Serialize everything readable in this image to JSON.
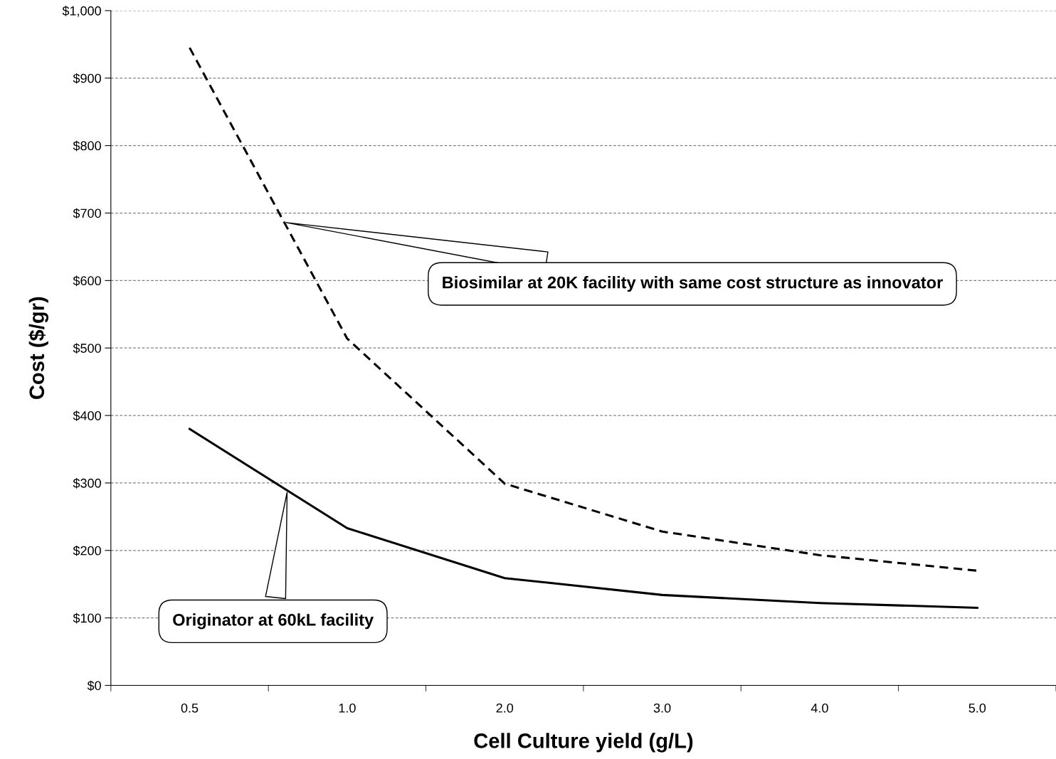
{
  "chart_data": {
    "type": "line",
    "xlabel": "Cell Culture yield (g/L)",
    "ylabel": "Cost ($/gr)",
    "categories": [
      "0.5",
      "1.0",
      "2.0",
      "3.0",
      "4.0",
      "5.0"
    ],
    "series": [
      {
        "name": "Biosimilar at 20K facility with same cost structure as innovator",
        "color": "#000000",
        "line_style": "dashed",
        "values": [
          945,
          514,
          299,
          228,
          193,
          170
        ]
      },
      {
        "name": "Originator at 60kL facility",
        "color": "#000000",
        "line_style": "solid",
        "values": [
          380,
          233,
          159,
          134,
          122,
          115
        ]
      }
    ],
    "ylim": [
      0,
      1000
    ],
    "yticks": [
      {
        "value": 0,
        "label": "$0"
      },
      {
        "value": 100,
        "label": "$100"
      },
      {
        "value": 200,
        "label": "$200"
      },
      {
        "value": 300,
        "label": "$300"
      },
      {
        "value": 400,
        "label": "$400"
      },
      {
        "value": 500,
        "label": "$500"
      },
      {
        "value": 600,
        "label": "$600"
      },
      {
        "value": 700,
        "label": "$700"
      },
      {
        "value": 800,
        "label": "$800"
      },
      {
        "value": 900,
        "label": "$900"
      },
      {
        "value": 1000,
        "label": "$1,000"
      }
    ],
    "grid": "y",
    "legend": false,
    "marker": "none"
  }
}
